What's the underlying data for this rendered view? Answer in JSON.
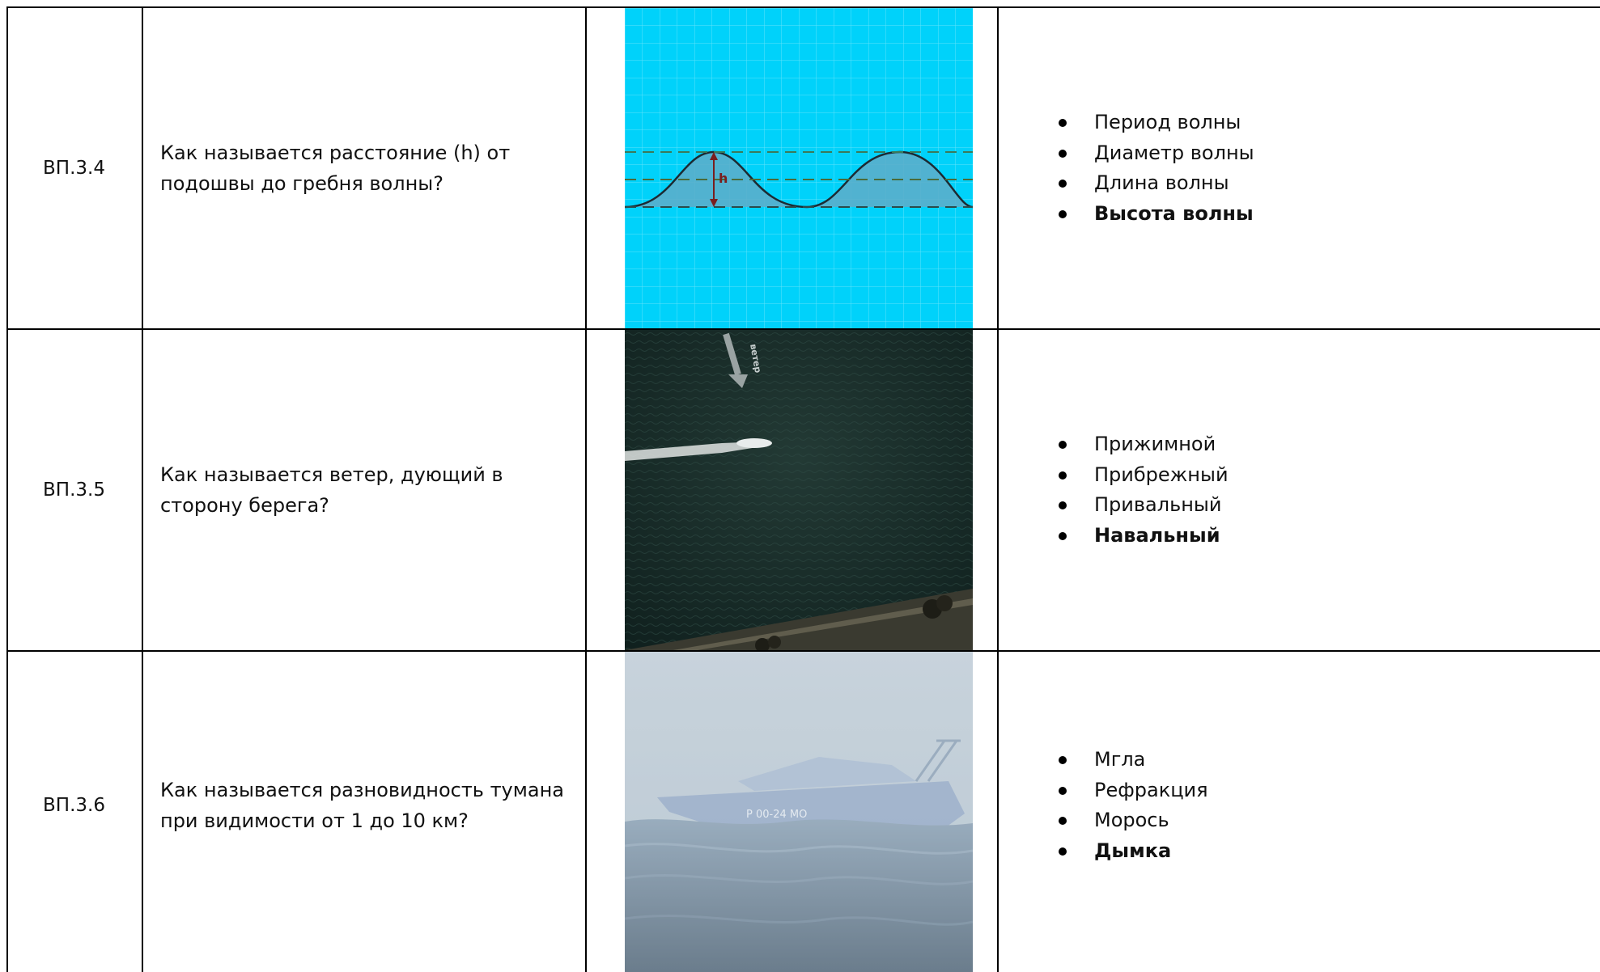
{
  "rows": [
    {
      "id": "ВП.3.4",
      "question": "Как называется расстояние (h) от подошвы до гребня волны?",
      "image_label": "h",
      "answers": [
        "Период волны",
        "Диаметр волны",
        "Длина волны",
        "Высота волны"
      ],
      "correct_index": 3
    },
    {
      "id": "ВП.3.5",
      "question": "Как называется ветер, дующий в сторону берега?",
      "image_label": "ветер",
      "answers": [
        "Прижимной",
        "Прибрежный",
        "Привальный",
        "Навальный"
      ],
      "correct_index": 3
    },
    {
      "id": "ВП.3.6",
      "question": "Как называется разновидность тумана при видимости от 1 до 10 км?",
      "image_label": "Р 00-24 МО",
      "answers": [
        "Мгла",
        "Рефракция",
        "Морось",
        "Дымка"
      ],
      "correct_index": 3
    }
  ],
  "colors": {
    "wave_bg": "#00d2fa",
    "wave_fill": "#5aaecb",
    "wave_arrow": "#7a1e1e",
    "dark_water": "#1a2f2b",
    "fog": "#a9bccc"
  }
}
